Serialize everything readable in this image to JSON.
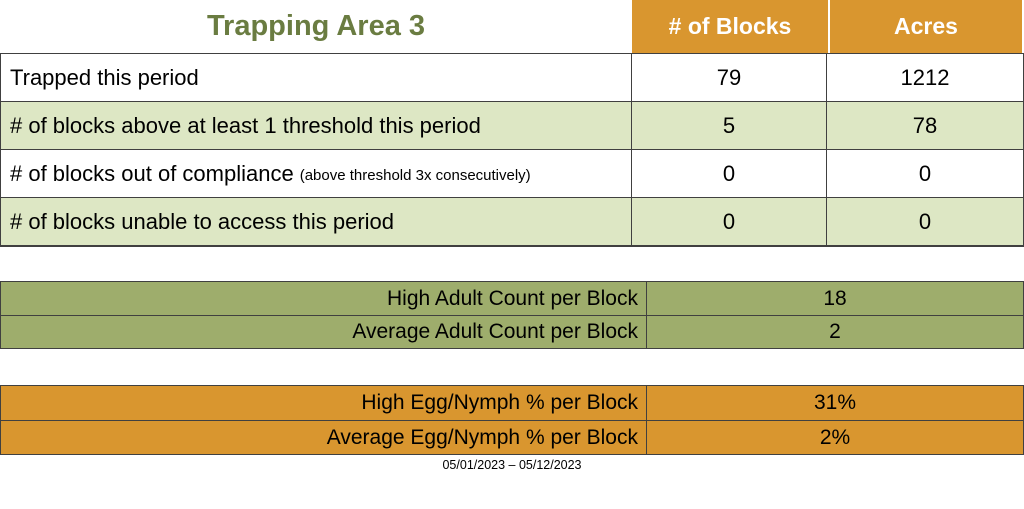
{
  "title": "Trapping Area 3",
  "main_table": {
    "column_headers": {
      "blocks": "# of Blocks",
      "acres": "Acres"
    },
    "rows": [
      {
        "label": "Trapped this period",
        "note": "",
        "blocks": "79",
        "acres": "1212"
      },
      {
        "label": "# of blocks above at least 1 threshold this period",
        "note": "",
        "blocks": "5",
        "acres": "78"
      },
      {
        "label": "# of blocks out of compliance",
        "note": "(above threshold 3x consecutively)",
        "blocks": "0",
        "acres": "0"
      },
      {
        "label": "# of blocks unable to access this period",
        "note": "",
        "blocks": "0",
        "acres": "0"
      }
    ]
  },
  "adult_table": {
    "rows": [
      {
        "label": "High Adult Count per Block",
        "value": "18"
      },
      {
        "label": "Average Adult Count per Block",
        "value": "2"
      }
    ]
  },
  "egg_table": {
    "rows": [
      {
        "label": "High Egg/Nymph % per Block",
        "value": "31%"
      },
      {
        "label": "Average Egg/Nymph % per Block",
        "value": "2%"
      }
    ]
  },
  "footer": {
    "date_range": "05/01/2023 – 05/12/2023"
  },
  "colors": {
    "accent_orange": "#D9962F",
    "row_tint_green": "#DDE7C4",
    "section_olive": "#9EAD6C",
    "title_green": "#6A7C41",
    "border": "#404040"
  }
}
